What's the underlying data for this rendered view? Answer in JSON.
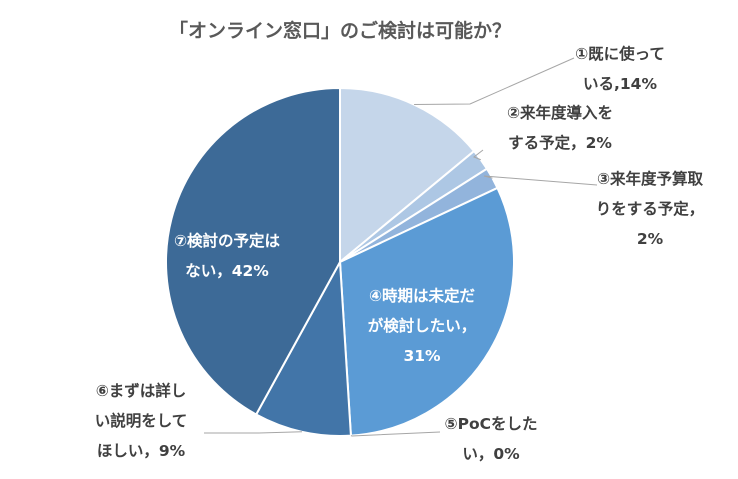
{
  "chart_data": {
    "type": "pie",
    "title": "「オンライン窓口」のご検討は可能か？",
    "start_angle_deg": 0,
    "direction": "clockwise",
    "slices": [
      {
        "label": "①既に使っている",
        "value": 14,
        "value_label": "14%",
        "color": "#c5d6ea",
        "text_lines": [
          "①既に使って",
          "いる,14%"
        ]
      },
      {
        "label": "②来年度導入をする予定",
        "value": 2,
        "value_label": "2%",
        "color": "#adc7e4",
        "text_lines": [
          "②来年度導入を",
          "する予定，2%"
        ]
      },
      {
        "label": "③来年度予算取りをする予定",
        "value": 2,
        "value_label": "2%",
        "color": "#92b4dc",
        "text_lines": [
          "③来年度予算取",
          "りをする予定，",
          "2%"
        ]
      },
      {
        "label": "④時期は未定だが検討したい",
        "value": 31,
        "value_label": "31%",
        "color": "#5b9bd5",
        "text_lines": [
          "④時期は未定だ",
          "が検討したい，",
          "31%"
        ]
      },
      {
        "label": "⑤PoCをしたい",
        "value": 0,
        "value_label": "0%",
        "color": "#4a84bf",
        "text_lines": [
          "⑤PoCをした",
          "い，0%"
        ]
      },
      {
        "label": "⑥まずは詳しい説明をしてほしい",
        "value": 9,
        "value_label": "9%",
        "color": "#4275a8",
        "text_lines": [
          "⑥まずは詳し",
          "い説明をして",
          "ほしい，9%"
        ]
      },
      {
        "label": "⑦検討の予定はない",
        "value": 42,
        "value_label": "42%",
        "color": "#3d6a97",
        "text_lines": [
          "⑦検討の予定は",
          "ない，42%"
        ]
      }
    ]
  }
}
